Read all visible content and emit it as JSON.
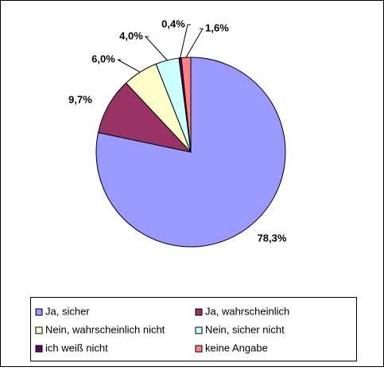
{
  "chart_data": {
    "type": "pie",
    "categories": [
      "Ja, sicher",
      "Ja, wahrscheinlich",
      "Nein, wahrscheinlich nicht",
      "Nein, sicher nicht",
      "ich weiß nicht",
      "keine Angabe"
    ],
    "values": [
      78.3,
      9.7,
      6.0,
      4.0,
      0.4,
      1.6
    ],
    "value_labels": [
      "78,3%",
      "9,7%",
      "6,0%",
      "4,0%",
      "0,4%",
      "1,6%"
    ],
    "colors": [
      "#9999ff",
      "#993366",
      "#ffffcc",
      "#ccffff",
      "#660066",
      "#ff8080"
    ],
    "legend": "bottom"
  }
}
